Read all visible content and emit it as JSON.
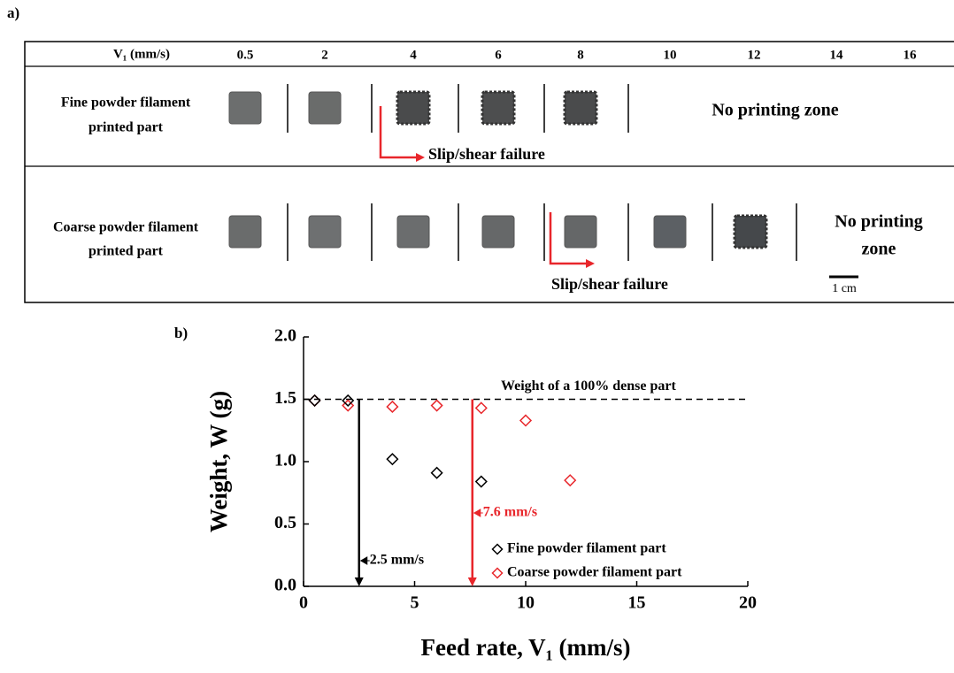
{
  "panel_a": {
    "label": "a)",
    "header": {
      "title": "V₁ (mm/s)",
      "columns": [
        "0.5",
        "2",
        "4",
        "6",
        "8",
        "10",
        "12",
        "14",
        "16"
      ]
    },
    "rows": [
      {
        "label": [
          "Fine powder filament",
          "printed part"
        ],
        "failure": "Slip/shear failure",
        "no_print": [
          "No printing zone"
        ]
      },
      {
        "label": [
          "Coarse powder filament",
          "printed part"
        ],
        "failure": "Slip/shear failure",
        "no_print": [
          "No printing",
          "zone"
        ]
      }
    ],
    "scale_bar": "1 cm"
  },
  "chart_data": {
    "type": "scatter",
    "panel_label": "b)",
    "x_label": "Feed rate, V₁ (mm/s)",
    "y_label": "Weight, W (g)",
    "xlim": [
      0,
      20
    ],
    "ylim": [
      0,
      2.0
    ],
    "xticks": [
      0,
      5,
      10,
      15,
      20
    ],
    "yticks": [
      {
        "value": 0,
        "label": "0.0"
      },
      {
        "value": 0.5,
        "label": "0.5"
      },
      {
        "value": 1,
        "label": "1.0"
      },
      {
        "value": 1.5,
        "label": "1.5"
      },
      {
        "value": 2,
        "label": "2.0"
      }
    ],
    "series": [
      {
        "name": "Fine powder filament part",
        "color": "#000000",
        "x": [
          0.5,
          2,
          4,
          6,
          8
        ],
        "values": [
          1.49,
          1.49,
          1.02,
          0.91,
          0.84
        ]
      },
      {
        "name": "Coarse powder filament part",
        "color": "#e8262b",
        "x": [
          0.5,
          2,
          4,
          6,
          8,
          10,
          12
        ],
        "values": [
          1.49,
          1.45,
          1.44,
          1.45,
          1.43,
          1.33,
          0.85
        ]
      }
    ],
    "reference_line": {
      "y": 1.5,
      "label": "Weight of a 100% dense part"
    },
    "markers": [
      {
        "x": 2.5,
        "label": "2.5 mm/s",
        "color": "#000000"
      },
      {
        "x": 7.6,
        "label": "7.6 mm/s",
        "color": "#e8262b"
      }
    ]
  }
}
